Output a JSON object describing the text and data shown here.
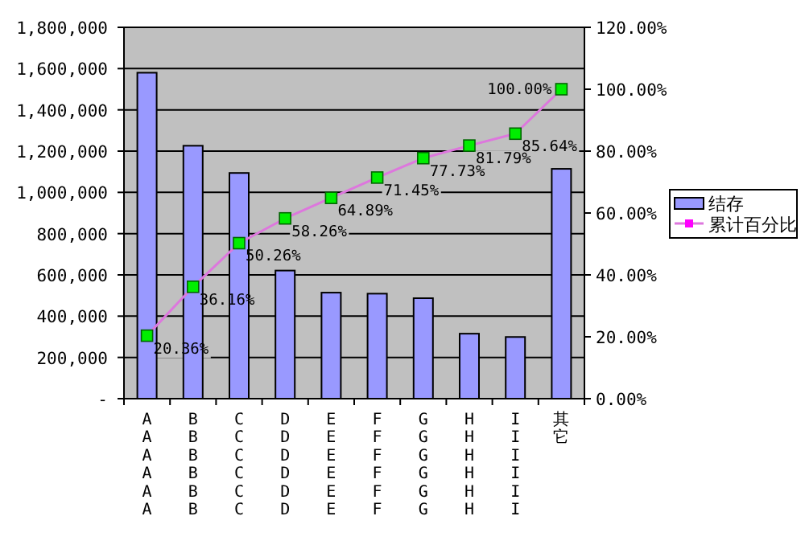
{
  "chart_data": {
    "type": "bar",
    "categories": [
      "AAAAAA",
      "BBBBBB",
      "CCCCCC",
      "DDDDDD",
      "EEEEEE",
      "FFFFFF",
      "GGGGGG",
      "HHHHHH",
      "IIIIII",
      "其它"
    ],
    "series": [
      {
        "name": "结存",
        "color": "#9999ff",
        "values": [
          1580000,
          1226000,
          1094000,
          621000,
          514000,
          509000,
          487000,
          315000,
          299000,
          1114000
        ]
      },
      {
        "name": "累计百分比",
        "type": "line",
        "axis": "y2",
        "color": "#dd77dd",
        "colors": [
          "#00ee00",
          "#00ee00",
          "#00ee00",
          "#00ee00",
          "#00ee00",
          "#00ee00",
          "#00ee00",
          "#00ee00",
          "#00ee00",
          "#00ee00"
        ],
        "values": [
          20.36,
          36.16,
          50.26,
          58.26,
          64.89,
          71.45,
          77.73,
          81.79,
          85.64,
          100
        ],
        "value_labels": [
          "20.36%",
          "36.16%",
          "50.26%",
          "58.26%",
          "64.89%",
          "71.45%",
          "77.73%",
          "81.79%",
          "85.64%",
          "100.00%"
        ]
      }
    ],
    "ylim": [
      0,
      1800000
    ],
    "yticks": [
      {
        "value": 0,
        "label": "-"
      },
      {
        "value": 200000,
        "label": "200,000"
      },
      {
        "value": 400000,
        "label": "400,000"
      },
      {
        "value": 600000,
        "label": "600,000"
      },
      {
        "value": 800000,
        "label": "800,000"
      },
      {
        "value": 1000000,
        "label": "1,000,000"
      },
      {
        "value": 1200000,
        "label": "1,200,000"
      },
      {
        "value": 1400000,
        "label": "1,400,000"
      },
      {
        "value": 1600000,
        "label": "1,600,000"
      },
      {
        "value": 1800000,
        "label": "1,800,000"
      }
    ],
    "y2lim": [
      0,
      120
    ],
    "y2ticks": [
      {
        "value": 0,
        "label": "0.00%"
      },
      {
        "value": 20,
        "label": "20.00%"
      },
      {
        "value": 40,
        "label": "40.00%"
      },
      {
        "value": 60,
        "label": "60.00%"
      },
      {
        "value": 80,
        "label": "80.00%"
      },
      {
        "value": 100,
        "label": "100.00%"
      },
      {
        "value": 120,
        "label": "120.00%"
      }
    ],
    "grid": "y",
    "legend": "right",
    "marker": "square"
  }
}
